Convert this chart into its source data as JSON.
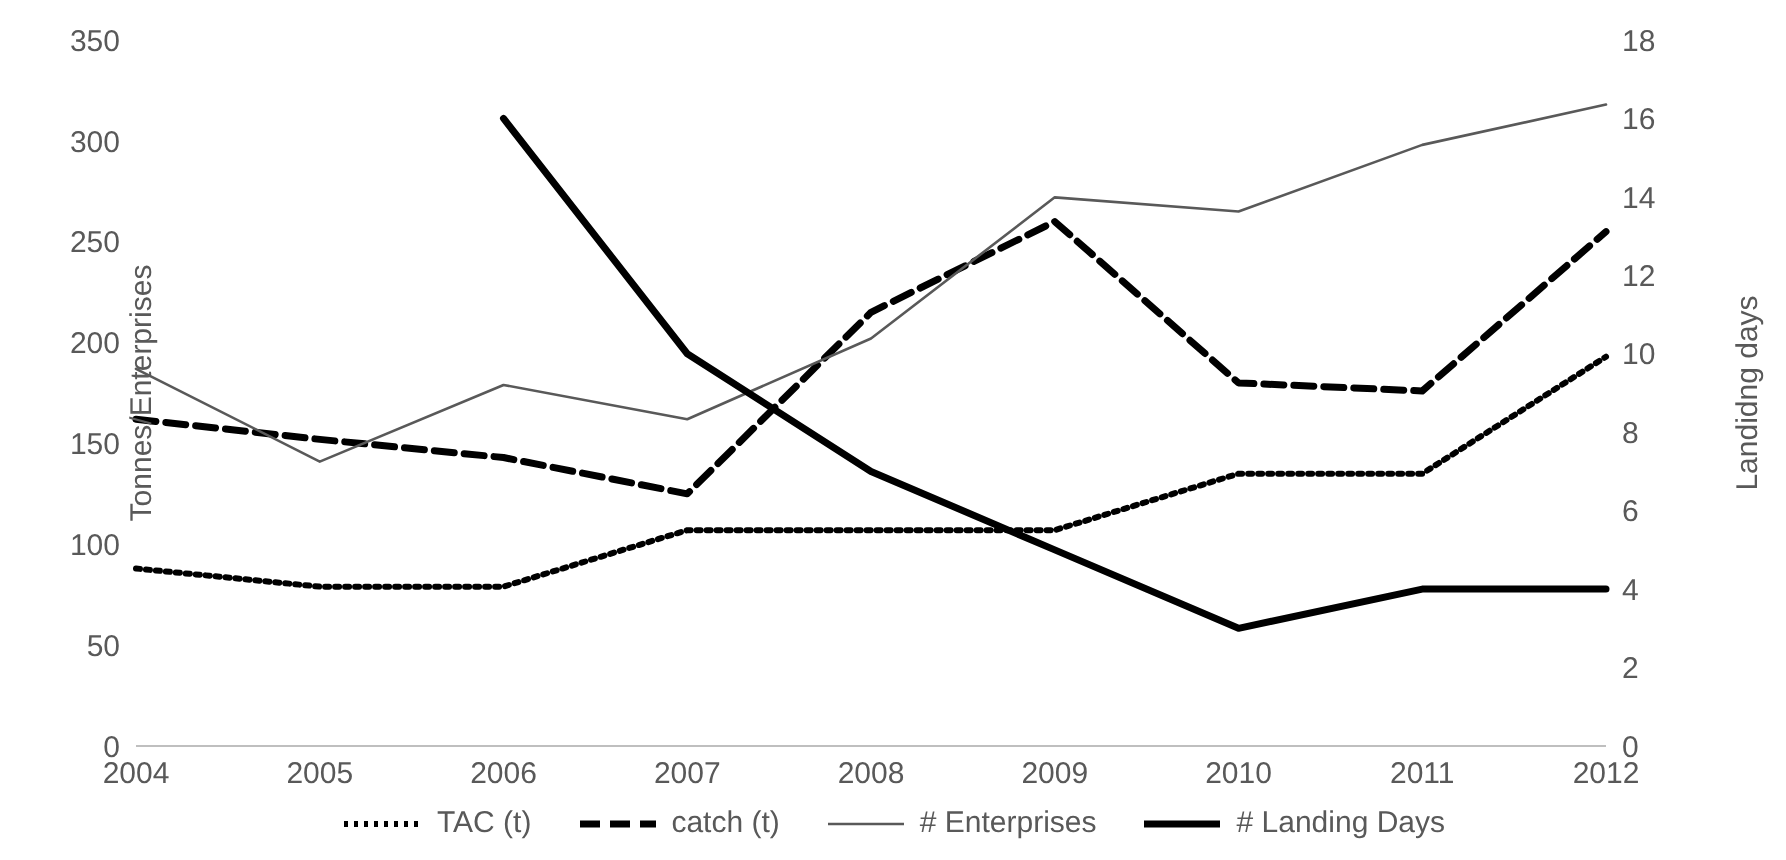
{
  "chart_data": {
    "type": "line",
    "categories": [
      "2004",
      "2005",
      "2006",
      "2007",
      "2008",
      "2009",
      "2010",
      "2011",
      "2012"
    ],
    "ylabel": "Tonnes/Enterprises",
    "y2label": "Landidng days",
    "ylim": [
      0,
      350
    ],
    "yticks": [
      0,
      50,
      100,
      150,
      200,
      250,
      300,
      350
    ],
    "y2lim": [
      0,
      18
    ],
    "y2ticks": [
      0,
      2,
      4,
      6,
      8,
      10,
      12,
      14,
      16,
      18
    ],
    "legend": "bottom",
    "marker": "none",
    "series": [
      {
        "name": "TAC (t)",
        "color": "#000000",
        "line_style": "dotted",
        "values": [
          88,
          79,
          79,
          107,
          107,
          107,
          135,
          135,
          193
        ]
      },
      {
        "name": "catch (t)",
        "color": "#000000",
        "line_style": "dashed",
        "values": [
          162,
          152,
          143,
          125,
          215,
          260,
          180,
          176,
          255
        ]
      },
      {
        "name": "# Enterprises",
        "color": "#595959",
        "line_style": "solid",
        "values": [
          187,
          141,
          179,
          162,
          202,
          272,
          265,
          298,
          318
        ]
      },
      {
        "name": "# Landing Days",
        "color": "#000000",
        "line_style": "solid",
        "axis": "y2",
        "values": [
          null,
          null,
          16,
          10,
          7,
          5,
          3,
          4,
          4
        ]
      }
    ]
  }
}
